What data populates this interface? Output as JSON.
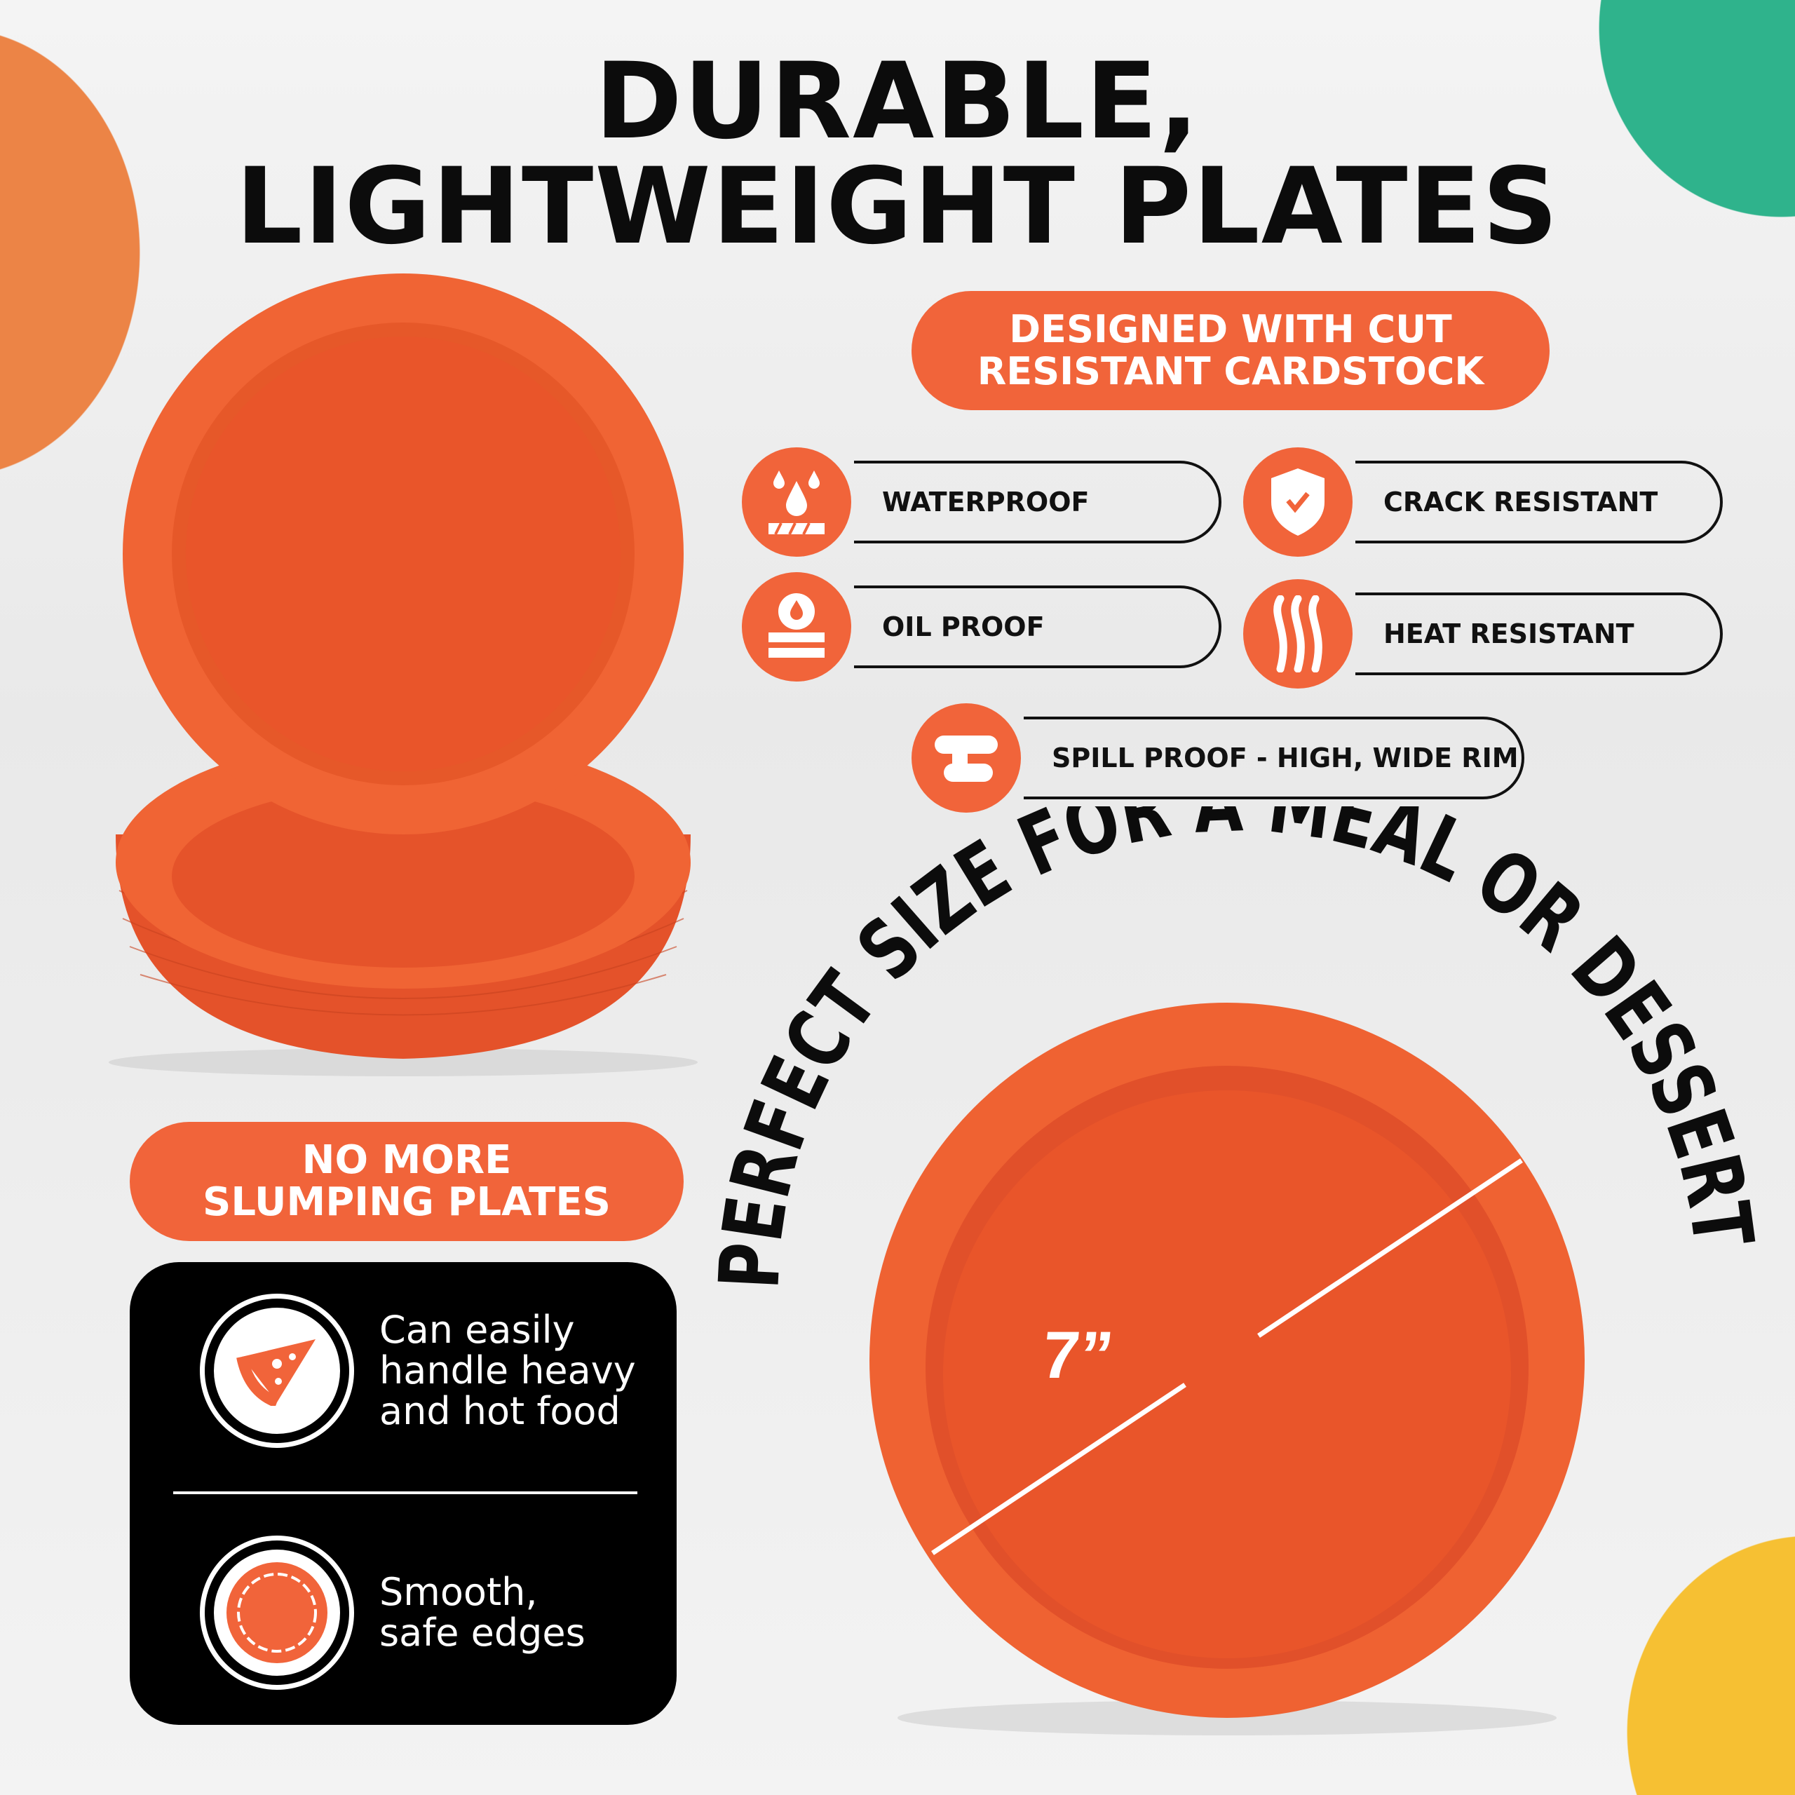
{
  "headline": {
    "line1": "DURABLE,",
    "line2": "LIGHTWEIGHT PLATES"
  },
  "badge_top": {
    "line1": "DESIGNED WITH CUT",
    "line2": "RESISTANT CARDSTOCK"
  },
  "features": [
    {
      "label": "WATERPROOF",
      "icon": "water-drops-icon"
    },
    {
      "label": "CRACK RESISTANT",
      "icon": "shield-check-icon"
    },
    {
      "label": "OIL PROOF",
      "icon": "oil-drop-icon"
    },
    {
      "label": "HEAT RESISTANT",
      "icon": "heat-waves-icon"
    },
    {
      "label": "SPILL PROOF - HIGH, WIDE RIM",
      "icon": "rim-icon"
    }
  ],
  "badge_left": {
    "line1": "NO MORE",
    "line2": "SLUMPING PLATES"
  },
  "benefits": [
    {
      "text": "Can easily\nhandle heavy\nand hot food",
      "icon": "pizza-icon"
    },
    {
      "text": "Smooth,\nsafe edges",
      "icon": "plate-edge-icon"
    }
  ],
  "curved_caption": "PERFECT SIZE FOR A MEAL OR DESSERT",
  "size_label": "7”",
  "colors": {
    "brand_orange": "#f1643a",
    "plate_orange": "#e8552a",
    "teal": "#2fb38c",
    "yellow": "#f6c033",
    "orange_circle": "#ec8446"
  }
}
